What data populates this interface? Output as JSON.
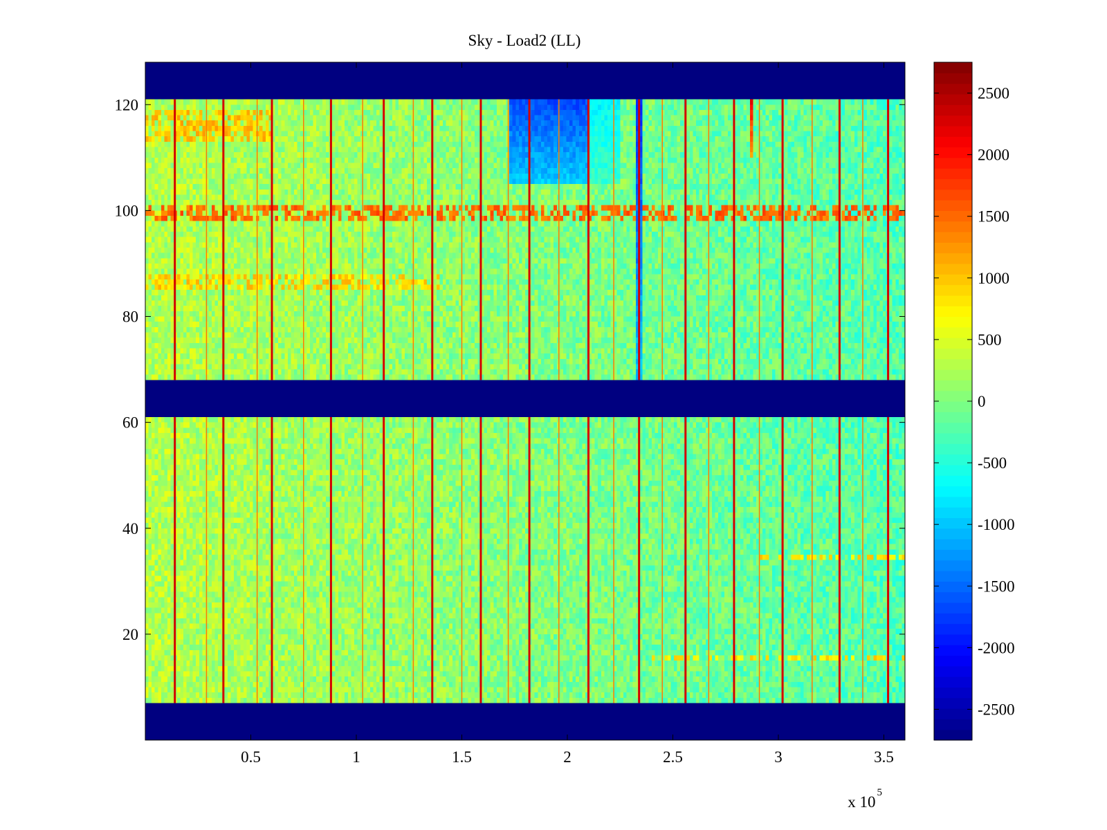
{
  "chart_data": {
    "type": "heatmap",
    "title": "Sky - Load2 (LL)",
    "xlabel": "",
    "ylabel": "",
    "colormap": "jet",
    "x_tick_labels": [
      "0.5",
      "1",
      "1.5",
      "2",
      "2.5",
      "3",
      "3.5"
    ],
    "x_ticks": [
      0.5,
      1,
      1.5,
      2,
      2.5,
      3,
      3.5
    ],
    "x_multiplier_label": "x 10",
    "x_multiplier_exponent": "5",
    "xlim": [
      0,
      3.6
    ],
    "y_tick_labels": [
      "20",
      "40",
      "60",
      "80",
      "100",
      "120"
    ],
    "y_ticks": [
      20,
      40,
      60,
      80,
      100,
      120
    ],
    "ylim": [
      0,
      128
    ],
    "clim": [
      -2750,
      2750
    ],
    "colorbar_tick_labels": [
      "2500",
      "2000",
      "1500",
      "1000",
      "500",
      "0",
      "-500",
      "-1000",
      "-1500",
      "-2000",
      "-2500"
    ],
    "colorbar_ticks": [
      2500,
      2000,
      1500,
      1000,
      500,
      0,
      -500,
      -1000,
      -1500,
      -2000,
      -2500
    ],
    "masked_row_bands": [
      [
        0,
        7
      ],
      [
        61,
        68
      ],
      [
        121,
        128
      ]
    ],
    "masked_value": -2750,
    "background_value": 300,
    "background_drift_end_value": -300,
    "strong_spike_columns_x1e5": [
      0.14,
      0.37,
      0.6,
      0.88,
      1.13,
      1.36,
      1.59,
      1.82,
      2.1,
      2.34,
      2.56,
      2.79,
      3.02,
      3.29,
      3.52
    ],
    "spike_value": 2300,
    "minor_spike_columns_x1e5": [
      0.29,
      0.53,
      0.75,
      1.03,
      1.27,
      1.5,
      1.72,
      1.96,
      2.22,
      2.45,
      2.67,
      2.91,
      3.16,
      3.4
    ],
    "minor_spike_value": 1400,
    "row_features": [
      {
        "rows": [
          98,
          101
        ],
        "value": 1500,
        "x_range": [
          0,
          3.6
        ]
      },
      {
        "rows": [
          113,
          119
        ],
        "value": 1000,
        "x_range": [
          0,
          0.6
        ]
      },
      {
        "rows": [
          85,
          88
        ],
        "value": 900,
        "x_range": [
          0,
          1.4
        ]
      },
      {
        "rows": [
          34,
          35
        ],
        "value": 800,
        "x_range": [
          2.9,
          3.6
        ]
      },
      {
        "rows": [
          15,
          16
        ],
        "value": 800,
        "x_range": [
          2.4,
          3.6
        ]
      }
    ],
    "region_features": [
      {
        "x_range": [
          1.72,
          2.12
        ],
        "y_range": [
          105,
          121
        ],
        "value": -1700
      },
      {
        "x_range": [
          2.32,
          2.35
        ],
        "y_range": [
          68,
          121
        ],
        "value": -1800
      },
      {
        "x_range": [
          2.86,
          2.88
        ],
        "y_range": [
          110,
          121
        ],
        "value": 2100
      },
      {
        "x_range": [
          2.1,
          2.25
        ],
        "y_range": [
          105,
          121
        ],
        "value": -700
      }
    ]
  }
}
